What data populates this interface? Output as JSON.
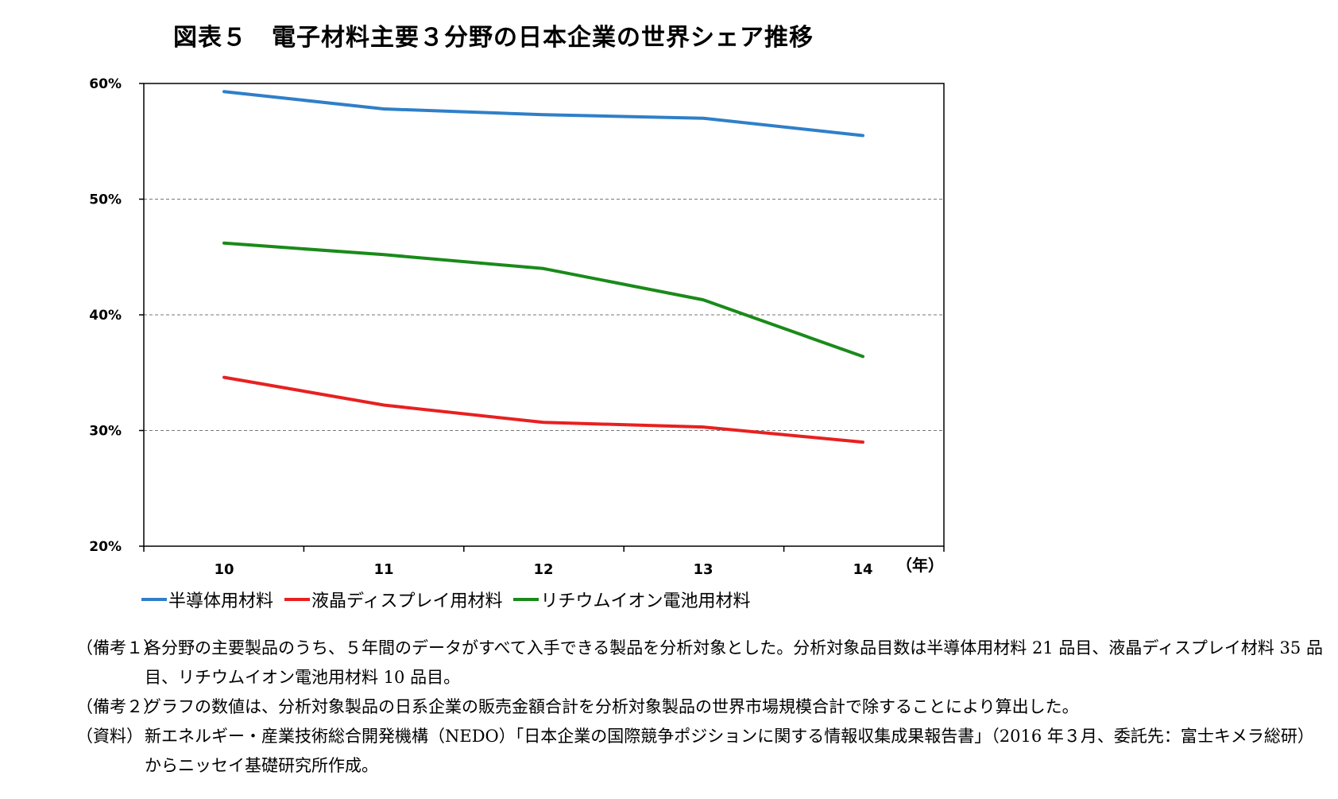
{
  "title": "図表５　電子材料主要３分野の日本企業の世界シェア推移",
  "chart_data": {
    "type": "line",
    "categories": [
      "10",
      "11",
      "12",
      "13",
      "14"
    ],
    "x_unit_label": "（年）",
    "ylim": [
      0.2,
      0.6
    ],
    "y_ticks": [
      "20%",
      "30%",
      "40%",
      "50%",
      "60%"
    ],
    "y_tick_values": [
      0.2,
      0.3,
      0.4,
      0.5,
      0.6
    ],
    "grid": "horizontal dashed at 30%, 40%, 50%",
    "legend_position": "bottom",
    "series": [
      {
        "name": "半導体用材料",
        "color": "#2f7fc8",
        "values": [
          0.593,
          0.578,
          0.573,
          0.57,
          0.555
        ]
      },
      {
        "name": "液晶ディスプレイ用材料",
        "color": "#e82020",
        "values": [
          0.346,
          0.322,
          0.307,
          0.303,
          0.29
        ]
      },
      {
        "name": "リチウムイオン電池用材料",
        "color": "#1a8a1a",
        "values": [
          0.462,
          0.452,
          0.44,
          0.413,
          0.364
        ]
      }
    ]
  },
  "notes": [
    {
      "tag": "（備考１）",
      "text": "各分野の主要製品のうち、５年間のデータがすべて入手できる製品を分析対象とした。分析対象品目数は半導体用材料 21 品目、液晶ディスプレイ材料 35 品目、リチウムイオン電池用材料 10 品目。"
    },
    {
      "tag": "（備考２）",
      "text": "グラフの数値は、分析対象製品の日系企業の販売金額合計を分析対象製品の世界市場規模合計で除することにより算出した。"
    },
    {
      "tag": "（資料）",
      "text": "新エネルギー・産業技術総合開発機構（NEDO）「日本企業の国際競争ポジションに関する情報収集成果報告書」（2016 年３月、委託先：富士キメラ総研）からニッセイ基礎研究所作成。"
    }
  ]
}
